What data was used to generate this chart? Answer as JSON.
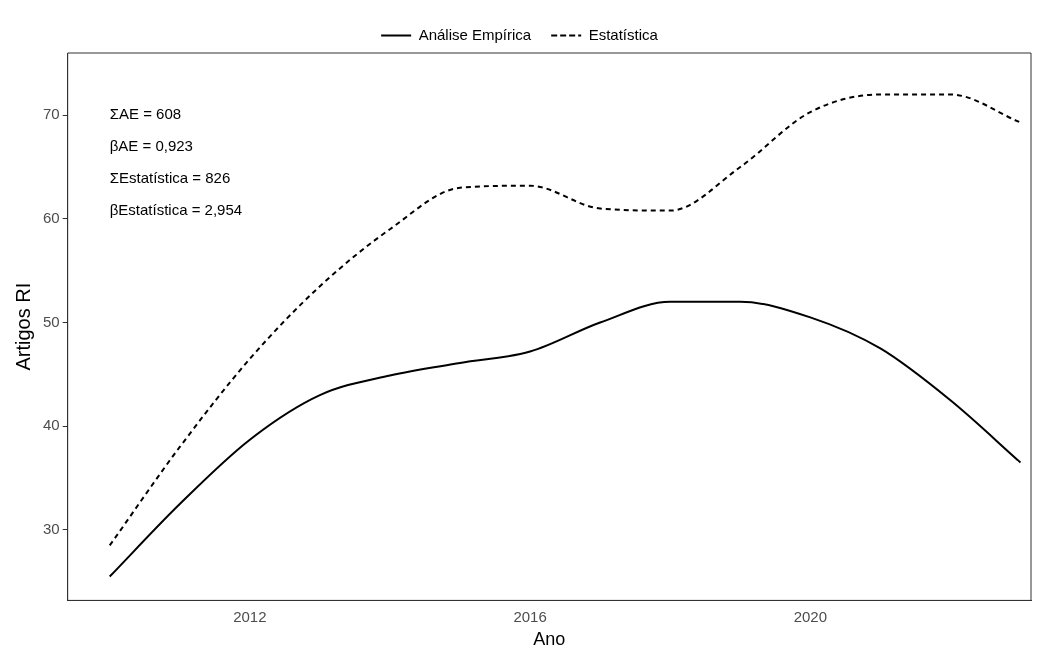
{
  "chart_data": {
    "type": "line",
    "xlabel": "Ano",
    "ylabel": "Artigos RI",
    "x": [
      2010,
      2011,
      2012,
      2013,
      2014,
      2015,
      2016,
      2017,
      2018,
      2019,
      2020,
      2021,
      2022,
      2023
    ],
    "series": [
      {
        "name": "Análise Empírica",
        "color": "#000000",
        "line_style": "solid",
        "values": [
          25.5,
          32.5,
          38.7,
          43.0,
          44.9,
          46.1,
          47.2,
          50.0,
          52.0,
          52.0,
          50.5,
          47.5,
          42.5,
          36.5
        ]
      },
      {
        "name": "Estatística",
        "color": "#000000",
        "line_style": "dashed",
        "values": [
          28.5,
          38.0,
          46.5,
          53.5,
          59.0,
          63.0,
          63.2,
          61.0,
          60.8,
          65.0,
          70.3,
          72.0,
          72.0,
          69.3
        ]
      }
    ],
    "xlim": [
      2009.4,
      2023.15
    ],
    "xticks": [
      2012,
      2016,
      2020
    ],
    "ylim": [
      23.2,
      76
    ],
    "yticks": [
      30,
      40,
      50,
      60,
      70
    ],
    "grid": false,
    "legend": "top",
    "marker": "none",
    "annotations": [
      "ΣAE = 608",
      "βAE = 0,923",
      "ΣEstatística = 826",
      "βEstatística = 2,954"
    ]
  }
}
